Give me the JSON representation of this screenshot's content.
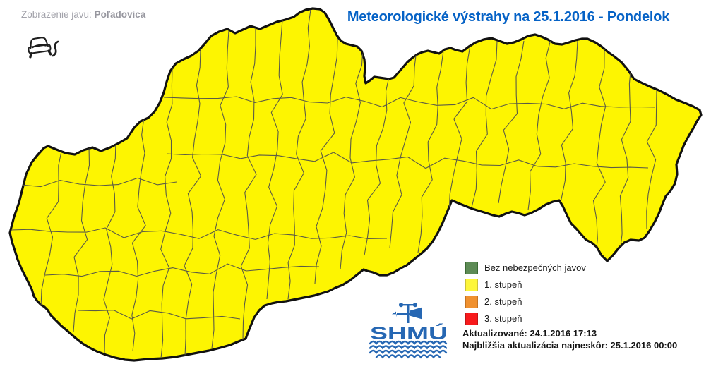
{
  "header": {
    "phenomenon_label": "Zobrazenie javu:",
    "phenomenon_value": "Poľadovica",
    "title": "Meteorologické výstrahy na 25.1.2016 - Pondelok",
    "title_color": "#0562c6"
  },
  "icons": {
    "phenomenon_icon": "car-skidding-on-ice-icon",
    "logo_icon": "shmu-weather-vane-and-waves"
  },
  "map": {
    "country": "Slovensko",
    "all_districts_warning_level": "1. stupeň",
    "fill_color": "#fdf501",
    "district_line_color": "#5b5b46",
    "outline_color": "#111111"
  },
  "legend": {
    "items": [
      {
        "label": "Bez nebezpečných javov",
        "color": "#5d8b55",
        "border": "#3c6a35"
      },
      {
        "label": "1. stupeň",
        "color": "#fdf63a",
        "border": "#cdc238"
      },
      {
        "label": "2. stupeň",
        "color": "#f0912f",
        "border": "#c47322"
      },
      {
        "label": "3. stupeň",
        "color": "#f81a1c",
        "border": "#bf1517"
      }
    ]
  },
  "logo": {
    "text": "SHMÚ",
    "color": "#2667b3"
  },
  "footer": {
    "updated": "Aktualizované: 24.1.2016 17:13",
    "next_update": "Najbližšia aktualizácia najneskôr: 25.1.2016 00:00"
  }
}
